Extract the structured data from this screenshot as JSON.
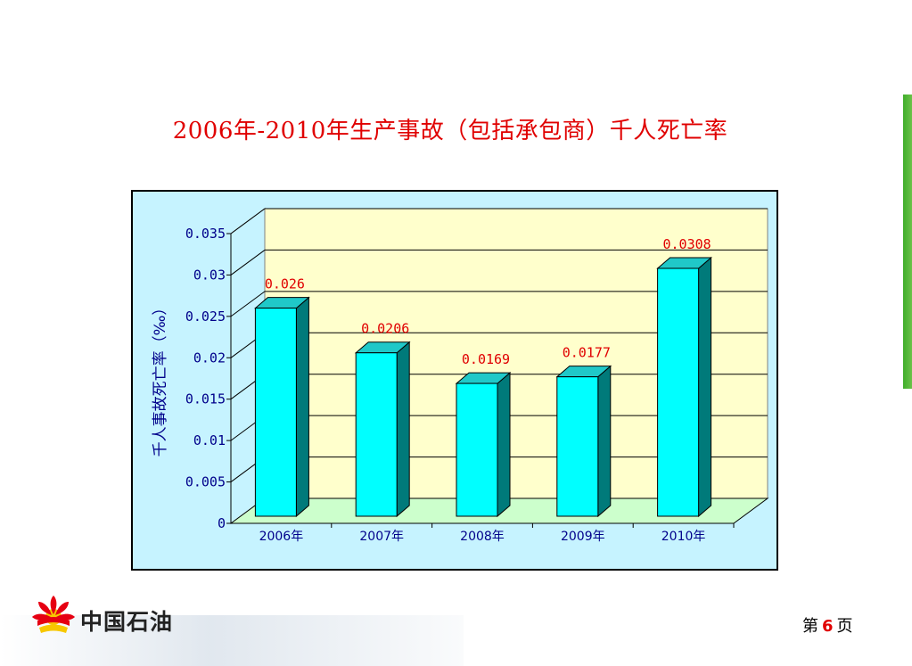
{
  "slide": {
    "title": "2006年-2010年生产事故（包括承包商）千人死亡率",
    "page_prefix": "第",
    "page_number": "6",
    "page_suffix": "页",
    "logo_text": "中国石油"
  },
  "colors": {
    "title": "#e00000",
    "bar_front": "#00ffff",
    "bar_side": "#007a7a",
    "bar_top": "#20c8c8",
    "plot_back": "#ffffcc",
    "plot_floor": "#ccffcc",
    "frame_bg": "#c6f3ff",
    "axis_text": "#00008b",
    "label_text": "#e00000"
  },
  "chart_data": {
    "type": "bar",
    "categories": [
      "2006年",
      "2007年",
      "2008年",
      "2009年",
      "2010年"
    ],
    "values": [
      0.026,
      0.0206,
      0.0169,
      0.0177,
      0.0308
    ],
    "data_labels": [
      "0.026",
      "0.0206",
      "0.0169",
      "0.0177",
      "0.0308"
    ],
    "ylabel": "千人事故死亡率（‰）",
    "ylim": [
      0,
      0.035
    ],
    "yticks": [
      0,
      0.005,
      0.01,
      0.015,
      0.02,
      0.025,
      0.03,
      0.035
    ],
    "ytick_labels": [
      "0",
      "0.005",
      "0.01",
      "0.015",
      "0.02",
      "0.025",
      "0.03",
      "0.035"
    ],
    "grid": true,
    "legend": "none",
    "style": "3d-bar"
  }
}
